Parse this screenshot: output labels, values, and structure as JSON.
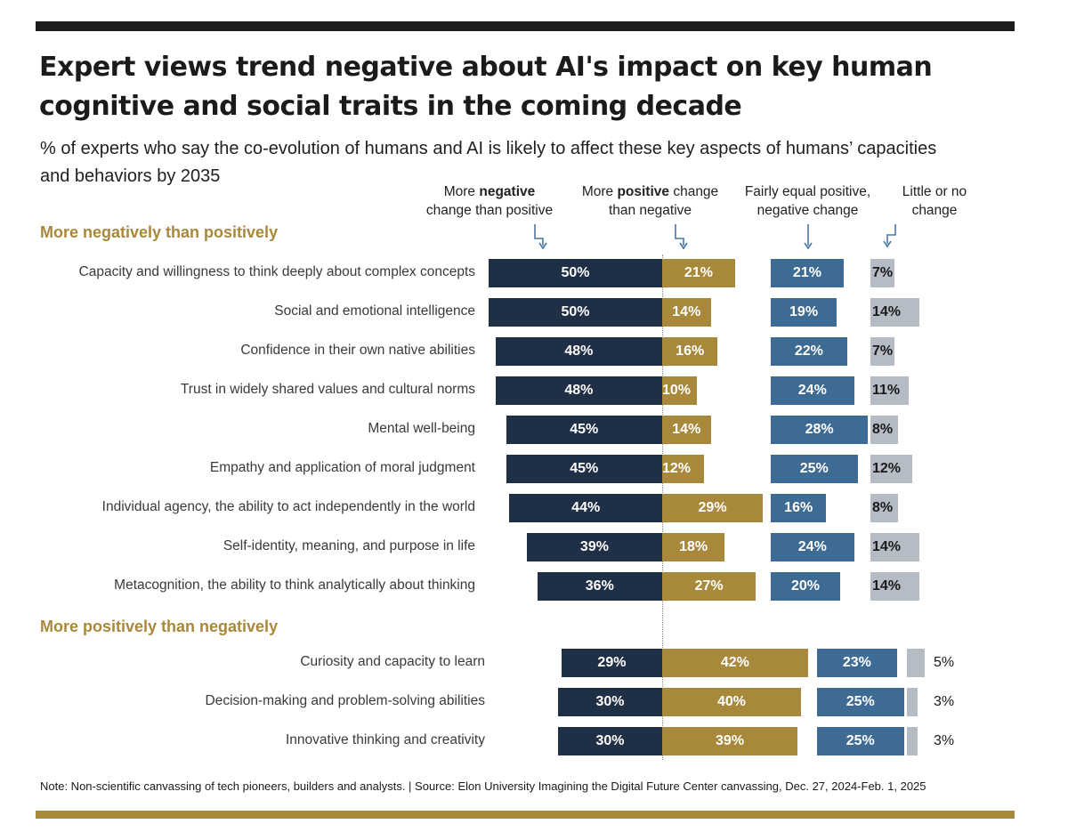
{
  "title": "Expert views trend negative about AI's impact on key human cognitive and social traits in the coming decade",
  "subtitle": "% of experts who say the co-evolution of humans and AI is likely to affect these key aspects of humans’ capacities and behaviors by 2035",
  "columns": {
    "negative": {
      "pre": "More ",
      "bold": "negative",
      "line2": "change than positive"
    },
    "positive": {
      "pre": "More ",
      "bold": "positive",
      "post": " change",
      "line2": "than negative"
    },
    "equal": {
      "line1": "Fairly equal positive,",
      "line2": "negative change"
    },
    "little": {
      "line1": "Little or no",
      "line2": "change"
    }
  },
  "colors": {
    "negative": "#1f2f45",
    "positive": "#a8883a",
    "equal": "#3e6b93",
    "little": "#b6bcc6"
  },
  "chart_data": {
    "type": "bar",
    "subtype": "diverging-stacked-horizontal",
    "unit": "%",
    "series_names": [
      "More negative change than positive",
      "More positive change than negative",
      "Fairly equal positive, negative change",
      "Little or no change"
    ],
    "groups": [
      {
        "label": "More negatively than positively",
        "rows": [
          {
            "label": "Capacity and willingness to think deeply about complex concepts",
            "negative": 50,
            "positive": 21,
            "equal": 21,
            "little": 7
          },
          {
            "label": "Social and emotional intelligence",
            "negative": 50,
            "positive": 14,
            "equal": 19,
            "little": 14
          },
          {
            "label": "Confidence in their own native abilities",
            "negative": 48,
            "positive": 16,
            "equal": 22,
            "little": 7
          },
          {
            "label": "Trust in widely shared values and cultural norms",
            "negative": 48,
            "positive": 10,
            "equal": 24,
            "little": 11
          },
          {
            "label": "Mental well-being",
            "negative": 45,
            "positive": 14,
            "equal": 28,
            "little": 8
          },
          {
            "label": "Empathy and application of moral judgment",
            "negative": 45,
            "positive": 12,
            "equal": 25,
            "little": 12
          },
          {
            "label": "Individual agency, the ability to act independently in the world",
            "negative": 44,
            "positive": 29,
            "equal": 16,
            "little": 8
          },
          {
            "label": "Self-identity, meaning, and purpose in life",
            "negative": 39,
            "positive": 18,
            "equal": 24,
            "little": 14
          },
          {
            "label": "Metacognition, the ability to think analytically about thinking",
            "negative": 36,
            "positive": 27,
            "equal": 20,
            "little": 14
          }
        ]
      },
      {
        "label": "More positively than negatively",
        "rows": [
          {
            "label": "Curiosity and capacity to learn",
            "negative": 29,
            "positive": 42,
            "equal": 23,
            "little": 5
          },
          {
            "label": "Decision-making and problem-solving abilities",
            "negative": 30,
            "positive": 40,
            "equal": 25,
            "little": 3
          },
          {
            "label": "Innovative thinking and creativity",
            "negative": 30,
            "positive": 39,
            "equal": 25,
            "little": 3
          }
        ]
      }
    ]
  },
  "note": "Note: Non-scientific canvassing of tech pioneers, builders and analysts. | Source: Elon University Imagining the Digital Future Center canvassing,  Dec. 27, 2024-Feb. 1, 2025"
}
